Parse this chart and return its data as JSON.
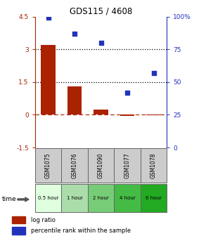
{
  "title": "GDS115 / 4608",
  "samples": [
    "GSM1075",
    "GSM1076",
    "GSM1090",
    "GSM1077",
    "GSM1078"
  ],
  "time_labels": [
    "0.5 hour",
    "1 hour",
    "2 hour",
    "4 hour",
    "6 hour"
  ],
  "time_colors": [
    "#dfffdf",
    "#aaddaa",
    "#77cc77",
    "#44bb44",
    "#22aa22"
  ],
  "log_ratio_values": [
    3.2,
    1.3,
    0.25,
    -0.04,
    -0.02
  ],
  "percentile": [
    99,
    87,
    80,
    42,
    57
  ],
  "bar_color": "#aa2200",
  "dot_color": "#2233bb",
  "left_ylim": [
    -1.5,
    4.5
  ],
  "right_ylim": [
    0,
    100
  ],
  "left_yticks": [
    -1.5,
    0,
    1.5,
    3,
    4.5
  ],
  "right_yticks": [
    0,
    25,
    50,
    75,
    100
  ],
  "right_ytick_labels": [
    "0",
    "25",
    "50",
    "75",
    "100%"
  ],
  "hline_y": [
    1.5,
    3.0
  ],
  "background_color": "#ffffff",
  "bar_width": 0.55,
  "x_positions": [
    0,
    1,
    2,
    3,
    4
  ]
}
